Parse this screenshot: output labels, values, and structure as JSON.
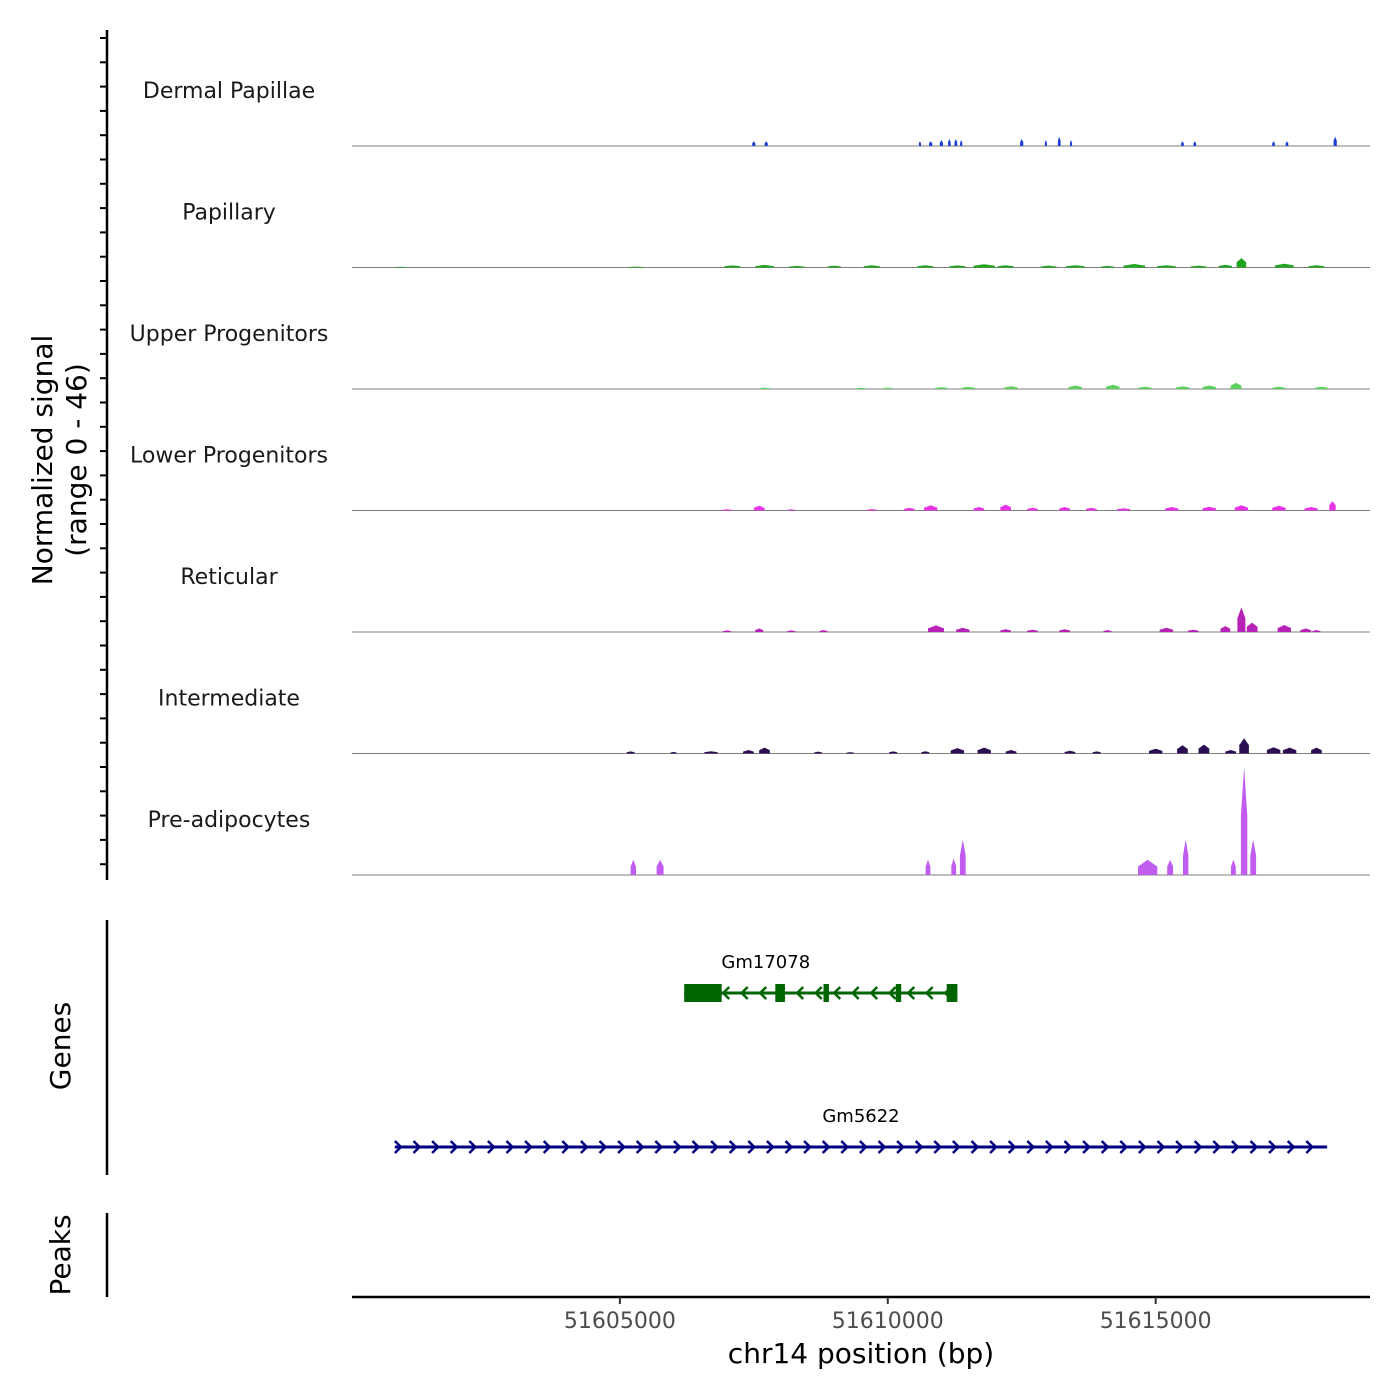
{
  "chart_data": {
    "type": "area",
    "title": "",
    "xlabel": "chr14 position (bp)",
    "ylabel": "Normalized signal",
    "ylabel_range": "(range 0 - 46)",
    "xlim": [
      51600000,
      51619000
    ],
    "ylim": [
      0,
      46
    ],
    "x_ticks": [
      51605000,
      51610000,
      51615000
    ],
    "x_tick_labels": [
      "51605000",
      "51610000",
      "51615000"
    ],
    "tracks": [
      {
        "name": "Dermal Papillae",
        "color": "#1f3fd6",
        "peaks": [
          [
            51607500,
            2,
            60
          ],
          [
            51607730,
            2,
            60
          ],
          [
            51610600,
            2,
            40
          ],
          [
            51610800,
            2,
            60
          ],
          [
            51611000,
            2.5,
            60
          ],
          [
            51611150,
            3,
            50
          ],
          [
            51611270,
            3,
            50
          ],
          [
            51611370,
            2.5,
            40
          ],
          [
            51612500,
            3,
            60
          ],
          [
            51612950,
            2.5,
            40
          ],
          [
            51613200,
            4,
            50
          ],
          [
            51613420,
            2.5,
            40
          ],
          [
            51615500,
            2,
            50
          ],
          [
            51615730,
            2,
            50
          ],
          [
            51617200,
            2,
            50
          ],
          [
            51617450,
            2,
            50
          ],
          [
            51618350,
            4,
            60
          ]
        ]
      },
      {
        "name": "Papillary",
        "color": "#1fa51f",
        "peaks": [
          [
            51600900,
            0.3,
            250
          ],
          [
            51605300,
            0.4,
            300
          ],
          [
            51607100,
            0.9,
            300
          ],
          [
            51607700,
            1.1,
            350
          ],
          [
            51608300,
            0.7,
            300
          ],
          [
            51609000,
            0.8,
            250
          ],
          [
            51609700,
            1.0,
            300
          ],
          [
            51610700,
            1.0,
            300
          ],
          [
            51611300,
            0.9,
            300
          ],
          [
            51611800,
            1.4,
            400
          ],
          [
            51612200,
            1.0,
            300
          ],
          [
            51613000,
            0.8,
            300
          ],
          [
            51613500,
            1.0,
            350
          ],
          [
            51614100,
            0.7,
            250
          ],
          [
            51614600,
            1.5,
            400
          ],
          [
            51615200,
            1.0,
            350
          ],
          [
            51615800,
            0.8,
            300
          ],
          [
            51616600,
            4.0,
            180
          ],
          [
            51616300,
            1.2,
            250
          ],
          [
            51617400,
            1.6,
            350
          ],
          [
            51618000,
            1.0,
            300
          ]
        ]
      },
      {
        "name": "Upper Progenitors",
        "color": "#5cd05c",
        "peaks": [
          [
            51607700,
            0.6,
            200
          ],
          [
            51609500,
            0.5,
            200
          ],
          [
            51610000,
            0.6,
            200
          ],
          [
            51611000,
            0.8,
            250
          ],
          [
            51611500,
            0.9,
            250
          ],
          [
            51612300,
            1.2,
            250
          ],
          [
            51613500,
            1.5,
            250
          ],
          [
            51614200,
            1.8,
            250
          ],
          [
            51614800,
            1.0,
            250
          ],
          [
            51615500,
            1.2,
            250
          ],
          [
            51616000,
            1.5,
            250
          ],
          [
            51616500,
            2.6,
            200
          ],
          [
            51617300,
            1.0,
            250
          ],
          [
            51618100,
            1.0,
            250
          ]
        ]
      },
      {
        "name": "Lower Progenitors",
        "color": "#e633e6",
        "peaks": [
          [
            51607000,
            0.5,
            200
          ],
          [
            51607600,
            2.0,
            200
          ],
          [
            51608200,
            0.5,
            150
          ],
          [
            51609700,
            0.6,
            200
          ],
          [
            51610400,
            1.2,
            200
          ],
          [
            51610800,
            2.2,
            250
          ],
          [
            51611700,
            1.5,
            200
          ],
          [
            51612200,
            2.5,
            200
          ],
          [
            51612700,
            1.2,
            200
          ],
          [
            51613300,
            1.5,
            200
          ],
          [
            51613800,
            1.2,
            200
          ],
          [
            51614400,
            1.0,
            250
          ],
          [
            51615300,
            1.5,
            250
          ],
          [
            51616000,
            1.6,
            250
          ],
          [
            51616600,
            2.2,
            250
          ],
          [
            51617300,
            2.0,
            250
          ],
          [
            51617900,
            1.5,
            250
          ],
          [
            51618300,
            4.0,
            120
          ]
        ]
      },
      {
        "name": "Reticular",
        "color": "#b522b5",
        "peaks": [
          [
            51607000,
            0.7,
            150
          ],
          [
            51607600,
            1.5,
            150
          ],
          [
            51608200,
            0.7,
            150
          ],
          [
            51608800,
            0.8,
            150
          ],
          [
            51610900,
            2.8,
            300
          ],
          [
            51611400,
            1.8,
            250
          ],
          [
            51612200,
            1.2,
            200
          ],
          [
            51612700,
            1.0,
            200
          ],
          [
            51613300,
            1.2,
            200
          ],
          [
            51614100,
            0.8,
            150
          ],
          [
            51615200,
            1.8,
            250
          ],
          [
            51615700,
            1.0,
            200
          ],
          [
            51616300,
            2.5,
            180
          ],
          [
            51616600,
            10.5,
            150
          ],
          [
            51616800,
            4.0,
            200
          ],
          [
            51617400,
            3.0,
            250
          ],
          [
            51617800,
            1.5,
            200
          ],
          [
            51618000,
            0.8,
            150
          ]
        ]
      },
      {
        "name": "Intermediate",
        "color": "#2c0f52",
        "peaks": [
          [
            51605200,
            0.9,
            150
          ],
          [
            51606000,
            0.7,
            120
          ],
          [
            51606700,
            1.0,
            250
          ],
          [
            51607400,
            1.5,
            200
          ],
          [
            51607700,
            2.5,
            200
          ],
          [
            51608700,
            0.8,
            150
          ],
          [
            51609300,
            0.6,
            150
          ],
          [
            51610100,
            0.9,
            150
          ],
          [
            51610700,
            1.0,
            150
          ],
          [
            51611300,
            2.3,
            250
          ],
          [
            51611800,
            2.5,
            250
          ],
          [
            51612300,
            1.5,
            200
          ],
          [
            51613400,
            1.2,
            200
          ],
          [
            51613900,
            0.9,
            150
          ],
          [
            51615000,
            2.0,
            250
          ],
          [
            51615500,
            3.5,
            200
          ],
          [
            51615900,
            3.8,
            200
          ],
          [
            51616400,
            1.5,
            200
          ],
          [
            51616650,
            6.5,
            180
          ],
          [
            51617200,
            2.7,
            250
          ],
          [
            51617500,
            2.5,
            250
          ],
          [
            51618000,
            2.5,
            200
          ]
        ]
      },
      {
        "name": "Pre-adipocytes",
        "color": "#c05cf0",
        "peaks": [
          [
            51605250,
            6.5,
            100
          ],
          [
            51605750,
            6.5,
            130
          ],
          [
            51610750,
            6.5,
            90
          ],
          [
            51611230,
            7.0,
            90
          ],
          [
            51611400,
            15.0,
            110
          ],
          [
            51614850,
            6.5,
            360
          ],
          [
            51615270,
            6.5,
            110
          ],
          [
            51615560,
            15.0,
            100
          ],
          [
            51616450,
            6.5,
            90
          ],
          [
            51616650,
            46.0,
            120
          ],
          [
            51616820,
            15.0,
            110
          ]
        ]
      }
    ],
    "genes": [
      {
        "name": "Gm17078",
        "color": "#006400",
        "start": 51606200,
        "end": 51611300,
        "strand": "-",
        "exons": [
          [
            51606200,
            51606900
          ],
          [
            51607900,
            51608080
          ],
          [
            51608800,
            51608900
          ],
          [
            51610150,
            51610250
          ],
          [
            51611100,
            51611300
          ]
        ]
      },
      {
        "name": "Gm5622",
        "color": "#000080",
        "start": 51600800,
        "end": 51618200,
        "strand": "+",
        "exons": []
      }
    ],
    "panel_labels": [
      "Genes",
      "Peaks"
    ]
  }
}
